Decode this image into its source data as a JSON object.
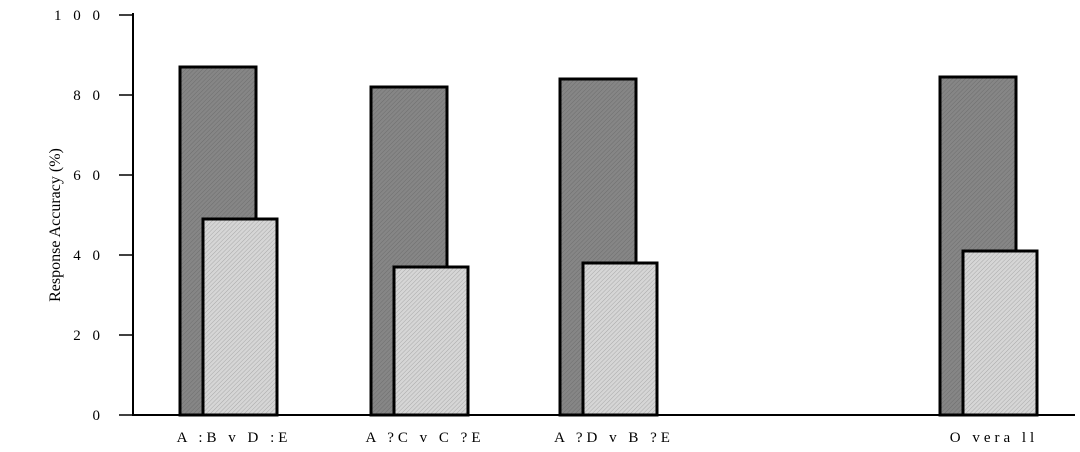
{
  "chart_data": {
    "type": "bar",
    "ylabel": "Response Accuracy (%)",
    "ylim": [
      0,
      100
    ],
    "yticks": [
      "0",
      "20",
      "40",
      "60",
      "80",
      "100"
    ],
    "categories": [
      "A:B v D:E",
      "A?C v C?E",
      "A?D v B?E",
      "Overall"
    ],
    "category_labels": [
      "A :B   v  D :E",
      "A ?C   v  C ?E",
      "A ?D   v  B ?E",
      "O vera ll"
    ],
    "series": [
      {
        "values": [
          87,
          82,
          84,
          84.5
        ],
        "color": "#808080"
      },
      {
        "values": [
          49,
          37,
          38,
          41
        ],
        "color": "#c8c8c8"
      }
    ],
    "grid": false,
    "legend": "none"
  }
}
